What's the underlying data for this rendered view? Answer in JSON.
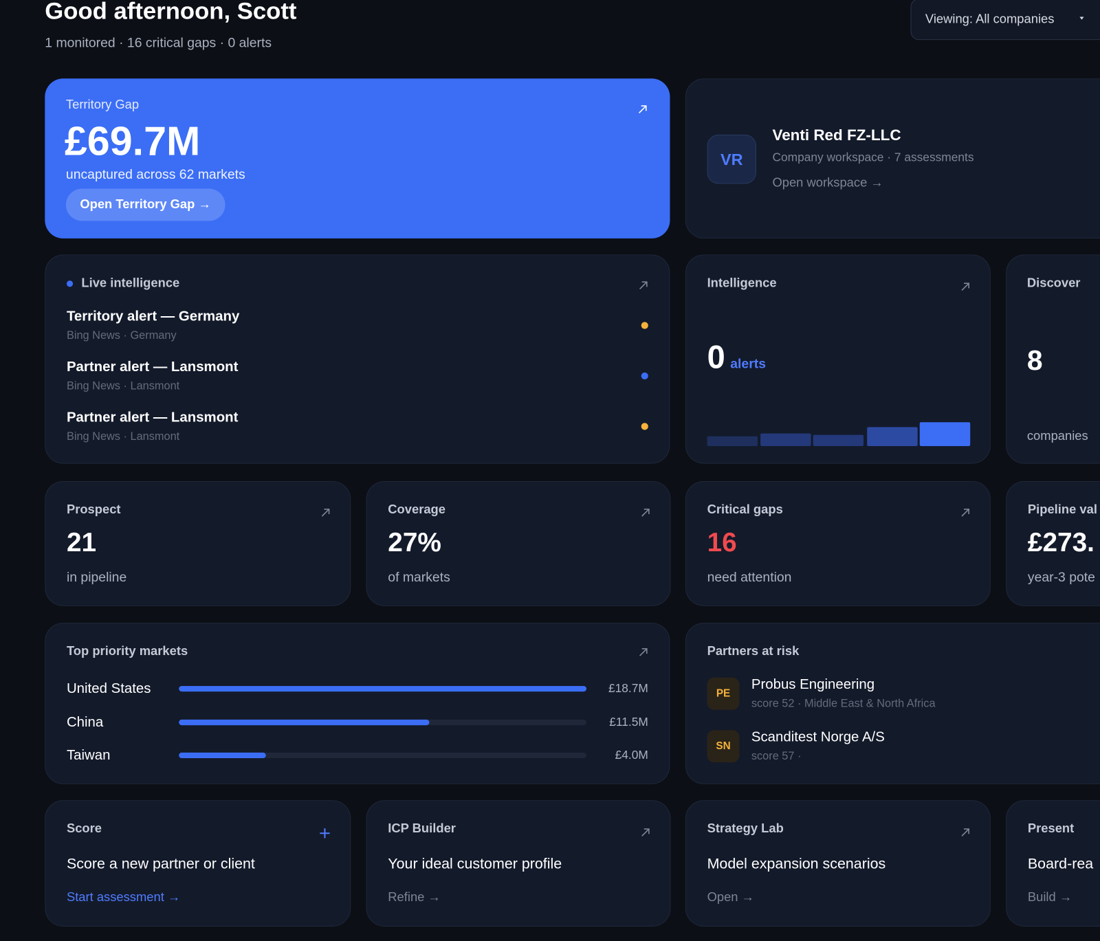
{
  "header": {
    "greeting": "Good afternoon, Scott",
    "summary": "1 monitored · 16 critical gaps · 0 alerts",
    "viewing": "Viewing: All companies"
  },
  "territory_gap": {
    "label": "Territory Gap",
    "value": "£69.7M",
    "subtitle": "uncaptured across 62 markets",
    "button": "Open Territory Gap →"
  },
  "company": {
    "initials": "VR",
    "name": "Venti Red FZ-LLC",
    "meta": "Company workspace · 7 assessments",
    "link": "Open workspace →"
  },
  "live_intelligence": {
    "title": "Live intelligence",
    "items": [
      {
        "title": "Territory alert — Germany",
        "source": "Bing News · Germany",
        "dot_color": "#f5b23c"
      },
      {
        "title": "Partner alert — Lansmont",
        "source": "Bing News · Lansmont",
        "dot_color": "#3b6ef5"
      },
      {
        "title": "Partner alert — Lansmont",
        "source": "Bing News · Lansmont",
        "dot_color": "#f5b23c"
      }
    ]
  },
  "intelligence": {
    "title": "Intelligence",
    "value": "0",
    "unit": "alerts"
  },
  "discover": {
    "title": "Discover",
    "value": "8",
    "unit": "companies"
  },
  "stats": [
    {
      "title": "Prospect",
      "value": "21",
      "caption": "in pipeline",
      "color": "#ffffff"
    },
    {
      "title": "Coverage",
      "value": "27%",
      "caption": "of markets",
      "color": "#ffffff"
    },
    {
      "title": "Critical gaps",
      "value": "16",
      "caption": "need attention",
      "color": "#f04a4f"
    },
    {
      "title": "Pipeline val",
      "value": "£273.",
      "caption": "year-3 pote",
      "color": "#ffffff"
    }
  ],
  "top_markets": {
    "title": "Top priority markets",
    "markets": [
      {
        "name": "United States",
        "value": 18.7,
        "value_label": "£18.7M"
      },
      {
        "name": "China",
        "value": 11.5,
        "value_label": "£11.5M"
      },
      {
        "name": "Taiwan",
        "value": 4.0,
        "value_label": "£4.0M"
      }
    ]
  },
  "partners_at_risk": {
    "title": "Partners at risk",
    "partners": [
      {
        "initials": "PE",
        "name": "Probus Engineering",
        "meta": "score 52 · Middle East & North Africa"
      },
      {
        "initials": "SN",
        "name": "Scanditest Norge A/S",
        "meta": "score 57 ·"
      }
    ]
  },
  "tools": [
    {
      "title": "Score",
      "headline": "Score a new partner or client",
      "link": "Start assessment →",
      "link_color": "#4f7cff"
    },
    {
      "title": "ICP Builder",
      "headline": "Your ideal customer profile",
      "link": "Refine →",
      "link_color": "#7d8596"
    },
    {
      "title": "Strategy Lab",
      "headline": "Model expansion scenarios",
      "link": "Open →",
      "link_color": "#7d8596"
    },
    {
      "title": "Present",
      "headline": "Board-rea",
      "link": "Build →",
      "link_color": "#7d8596"
    }
  ]
}
